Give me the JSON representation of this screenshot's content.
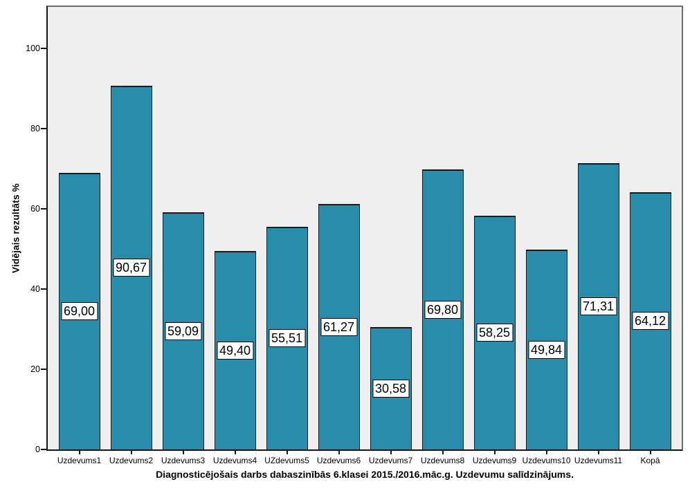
{
  "chart_data": {
    "type": "bar",
    "title": "Diagnosticējošais darbs dabaszinībās 6.klasei 2015./2016.māc.g. Uzdevumu salīdzinājums.",
    "ylabel": "Vidējais rezultāts %",
    "xlabel": "",
    "categories": [
      "Uzdevums1",
      "Uzdevums2",
      "Uzdevums3",
      "Uzdevums4",
      "UZdevums5",
      "Uzdevums6",
      "Uzdevums7",
      "Uzdevums8",
      "Uzdevums9",
      "Uzdevums10",
      "Uzdevums11",
      "Kopā"
    ],
    "values": [
      69.0,
      90.67,
      59.09,
      49.4,
      55.51,
      61.27,
      30.58,
      69.8,
      58.25,
      49.84,
      71.31,
      64.12
    ],
    "value_labels": [
      "69,00",
      "90,67",
      "59,09",
      "49,40",
      "55,51",
      "61,27",
      "30,58",
      "69,80",
      "58,25",
      "49,84",
      "71,31",
      "64,12"
    ],
    "yticks": [
      0,
      20,
      40,
      60,
      80,
      100
    ],
    "ytick_labels": [
      "0",
      "20",
      "40",
      "60",
      "80",
      "100"
    ],
    "ylim": [
      0,
      111
    ],
    "grid": false,
    "legend": false,
    "value_label_position": "middle-of-bar",
    "colors": {
      "bar_fill": "#298CAB",
      "bar_border": "#1a1a1a",
      "plot_background": "#EFEFEF",
      "frame_border": "#6b6b6b",
      "axis_line": "#151515",
      "value_box_background": "#FFFFFF",
      "value_box_border": "#000000",
      "page_background": "#FFFFFF",
      "text": "#000000"
    }
  }
}
